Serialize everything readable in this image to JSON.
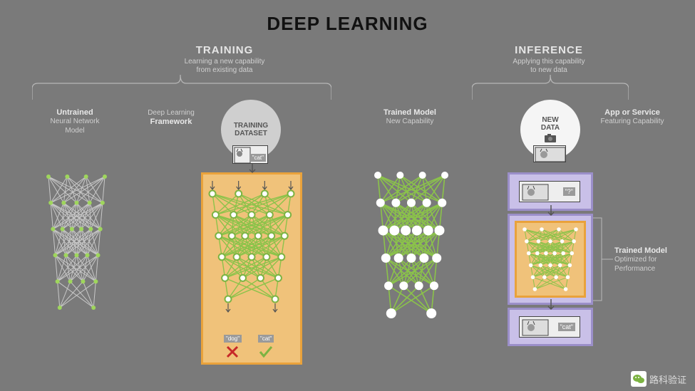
{
  "title": "DEEP LEARNING",
  "training": {
    "heading": "TRAINING",
    "sub1": "Learning a new capability",
    "sub2": "from existing data",
    "left": {
      "h": "Untrained",
      "s1": "Neural Network",
      "s2": "Model"
    },
    "mid": {
      "h": "Deep Learning",
      "s1": "Framework"
    },
    "circle": {
      "l1": "TRAINING",
      "l2": "DATASET"
    },
    "cat_label": "\"cat\"",
    "out_dog": "\"dog\"",
    "out_cat": "\"cat\"",
    "panel": {
      "border": "#e9a23b",
      "fill": "#f0c27a"
    }
  },
  "trained": {
    "h": "Trained Model",
    "s1": "New Capability"
  },
  "inference": {
    "heading": "INFERENCE",
    "sub1": "Applying this capability",
    "sub2": "to new data",
    "circle": {
      "l1": "NEW",
      "l2": "DATA"
    },
    "right": {
      "h": "App or Service",
      "s1": "Featuring Capability"
    },
    "rlabel": {
      "h": "Trained Model",
      "s1": "Optimized for",
      "s2": "Performance"
    },
    "q": "\"?\"",
    "cat": "\"cat\"",
    "panel": {
      "border": "#9b8fc9",
      "fill": "#c9c0e8"
    }
  },
  "colors": {
    "bg": "#7a7a7a",
    "gray_line": "#c8c8c8",
    "green": "#8bc34a",
    "green_node_stroke": "#7cb342",
    "white": "#ffffff",
    "red": "#c62828",
    "check": "#7cb342",
    "orange_inner": "#f0b85d"
  },
  "net": {
    "layers": [
      4,
      5,
      6,
      5,
      4,
      2
    ],
    "node_r_gray": 3,
    "node_r_green_small": 4.5,
    "node_r_white_scale": [
      5,
      6,
      7,
      6.5,
      6,
      7
    ]
  },
  "footer": "路科验证"
}
